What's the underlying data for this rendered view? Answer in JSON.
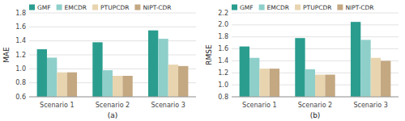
{
  "chart_data": [
    {
      "type": "bar",
      "categories": [
        "Scenario 1",
        "Scenario 2",
        "Scenario 3"
      ],
      "series": [
        {
          "name": "GMF",
          "color": "#2a9d8f",
          "values": [
            1.28,
            1.38,
            1.55
          ]
        },
        {
          "name": "EMCDR",
          "color": "#8ecfca",
          "values": [
            1.16,
            0.98,
            1.43
          ]
        },
        {
          "name": "PTUPCDR",
          "color": "#e8d5b0",
          "values": [
            0.95,
            0.9,
            1.06
          ]
        },
        {
          "name": "NIPT-CDR",
          "color": "#c4a882",
          "values": [
            0.95,
            0.9,
            1.04
          ]
        }
      ],
      "ylabel": "MAE",
      "xlabel": "(a)",
      "ylim": [
        0.6,
        1.8
      ],
      "yticks": [
        0.6,
        0.8,
        {
          "value": 1.0,
          "label": "1.0"
        },
        1.2,
        1.4,
        1.6,
        1.8
      ],
      "grid": true,
      "legend": "upper left"
    },
    {
      "type": "bar",
      "categories": [
        "Scenario 1",
        "Scenario 2",
        "Scenario 3"
      ],
      "series": [
        {
          "name": "GMF",
          "color": "#2a9d8f",
          "values": [
            1.64,
            1.78,
            2.05
          ]
        },
        {
          "name": "EMCDR",
          "color": "#8ecfca",
          "values": [
            1.45,
            1.26,
            1.75
          ]
        },
        {
          "name": "PTUPCDR",
          "color": "#e8d5b0",
          "values": [
            1.27,
            1.17,
            1.45
          ]
        },
        {
          "name": "NIPT-CDR",
          "color": "#c4a882",
          "values": [
            1.27,
            1.17,
            1.4
          ]
        }
      ],
      "ylabel": "RMSE",
      "xlabel": "(b)",
      "ylim": [
        0.8,
        2.2
      ],
      "yticks": [
        0.8,
        {
          "value": 1.0,
          "label": "1.0"
        },
        1.2,
        1.4,
        1.6,
        1.8,
        {
          "value": 2.0,
          "label": "2.0"
        },
        2.2
      ],
      "grid": true,
      "legend": "upper left"
    }
  ]
}
